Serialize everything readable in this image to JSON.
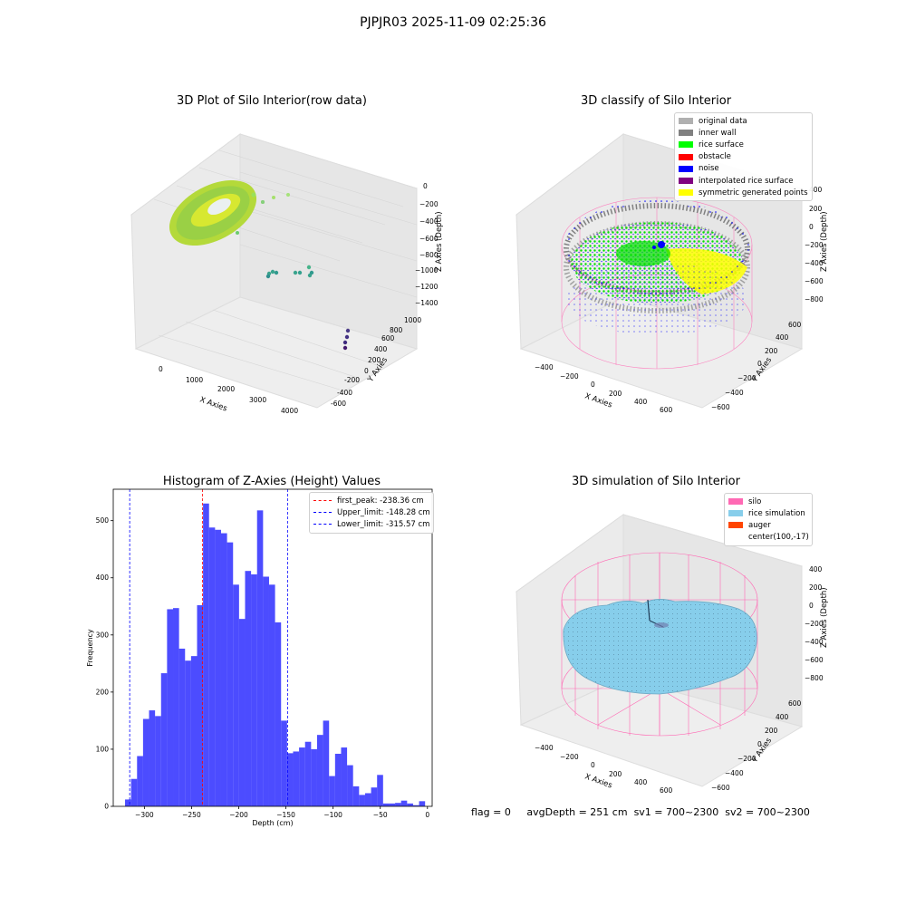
{
  "suptitle": "PJPJR03 2025-11-09 02:25:36",
  "panels": {
    "raw": {
      "title": "3D Plot of Silo Interior(row data)",
      "xlabel": "X Axies",
      "ylabel": "Y Axies",
      "zlabel": "Z Axies (Depth)",
      "xticks": [
        "0",
        "1000",
        "2000",
        "3000",
        "4000"
      ],
      "yticks": [
        "-600",
        "-400",
        "-200",
        "0",
        "200",
        "400",
        "600",
        "800",
        "1000"
      ],
      "zticks": [
        "0",
        "−200",
        "−400",
        "−600",
        "−800",
        "−1000",
        "−1200",
        "−1400"
      ]
    },
    "classify": {
      "title": "3D classify of Silo Interior",
      "xlabel": "X Axies",
      "ylabel": "Y Axies",
      "zlabel": "Z Axies (Depth)",
      "xticks": [
        "−400",
        "−200",
        "0",
        "200",
        "400",
        "600"
      ],
      "yticks": [
        "−600",
        "−400",
        "−200",
        "0",
        "200",
        "400",
        "600"
      ],
      "zticks": [
        "400",
        "200",
        "0",
        "−200",
        "−400",
        "−600",
        "−800"
      ],
      "legend": [
        {
          "label": "original data",
          "color": "#b0b0b0"
        },
        {
          "label": "inner wall",
          "color": "#808080"
        },
        {
          "label": "rice surface",
          "color": "#00ff00"
        },
        {
          "label": "obstacle",
          "color": "#ff0000"
        },
        {
          "label": "noise",
          "color": "#0000ff"
        },
        {
          "label": "interpolated rice surface",
          "color": "#800080"
        },
        {
          "label": "symmetric generated points",
          "color": "#ffff00"
        }
      ]
    },
    "simulation": {
      "title": "3D simulation of Silo Interior",
      "xlabel": "X Axies",
      "ylabel": "Y Axies",
      "zlabel": "Z Axies (Depth)",
      "xticks": [
        "−400",
        "−200",
        "0",
        "200",
        "400",
        "600"
      ],
      "yticks": [
        "−600",
        "−400",
        "−200",
        "0",
        "200",
        "400",
        "600"
      ],
      "zticks": [
        "400",
        "200",
        "0",
        "−200",
        "−400",
        "−600",
        "−800"
      ],
      "legend": [
        {
          "label": "silo",
          "color": "#ff69b4"
        },
        {
          "label": "rice simulation",
          "color": "#87ceeb"
        },
        {
          "label": "auger",
          "color": "#ff4500"
        },
        {
          "label": "center(100,-17)",
          "color": ""
        }
      ]
    }
  },
  "chart_data": {
    "type": "bar",
    "title": "Histogram of Z-Axies (Height) Values",
    "xlabel": "Depth (cm)",
    "ylabel": "Frequency",
    "xlim": [
      -333,
      5
    ],
    "ylim": [
      0,
      555
    ],
    "xticks": [
      -300,
      -250,
      -200,
      -150,
      -100,
      -50,
      0
    ],
    "yticks": [
      0,
      100,
      200,
      300,
      400,
      500
    ],
    "bar_color": "#0000ff",
    "bin_start": -320.5,
    "bin_width": 6.36,
    "values": [
      12,
      48,
      88,
      153,
      168,
      158,
      233,
      345,
      347,
      276,
      255,
      263,
      352,
      530,
      488,
      484,
      478,
      462,
      388,
      328,
      412,
      406,
      518,
      402,
      388,
      322,
      150,
      93,
      96,
      103,
      113,
      100,
      125,
      150,
      53,
      92,
      103,
      72,
      35,
      20,
      23,
      33,
      55,
      5,
      5,
      6,
      10,
      5,
      2,
      9
    ],
    "lines": [
      {
        "label": "first_peak: -238.36 cm",
        "value": -238.36,
        "color": "#ff0000"
      },
      {
        "label": "Upper_limit: -148.28 cm",
        "value": -148.28,
        "color": "#0000ff"
      },
      {
        "label": "Lower_limit: -315.57 cm",
        "value": -315.57,
        "color": "#0000ff"
      }
    ]
  },
  "footer": {
    "flag": "flag = 0",
    "avg_depth": "avgDepth = 251 cm",
    "sv1": "sv1 = 700~2300",
    "sv2": "sv2 = 700~2300"
  }
}
